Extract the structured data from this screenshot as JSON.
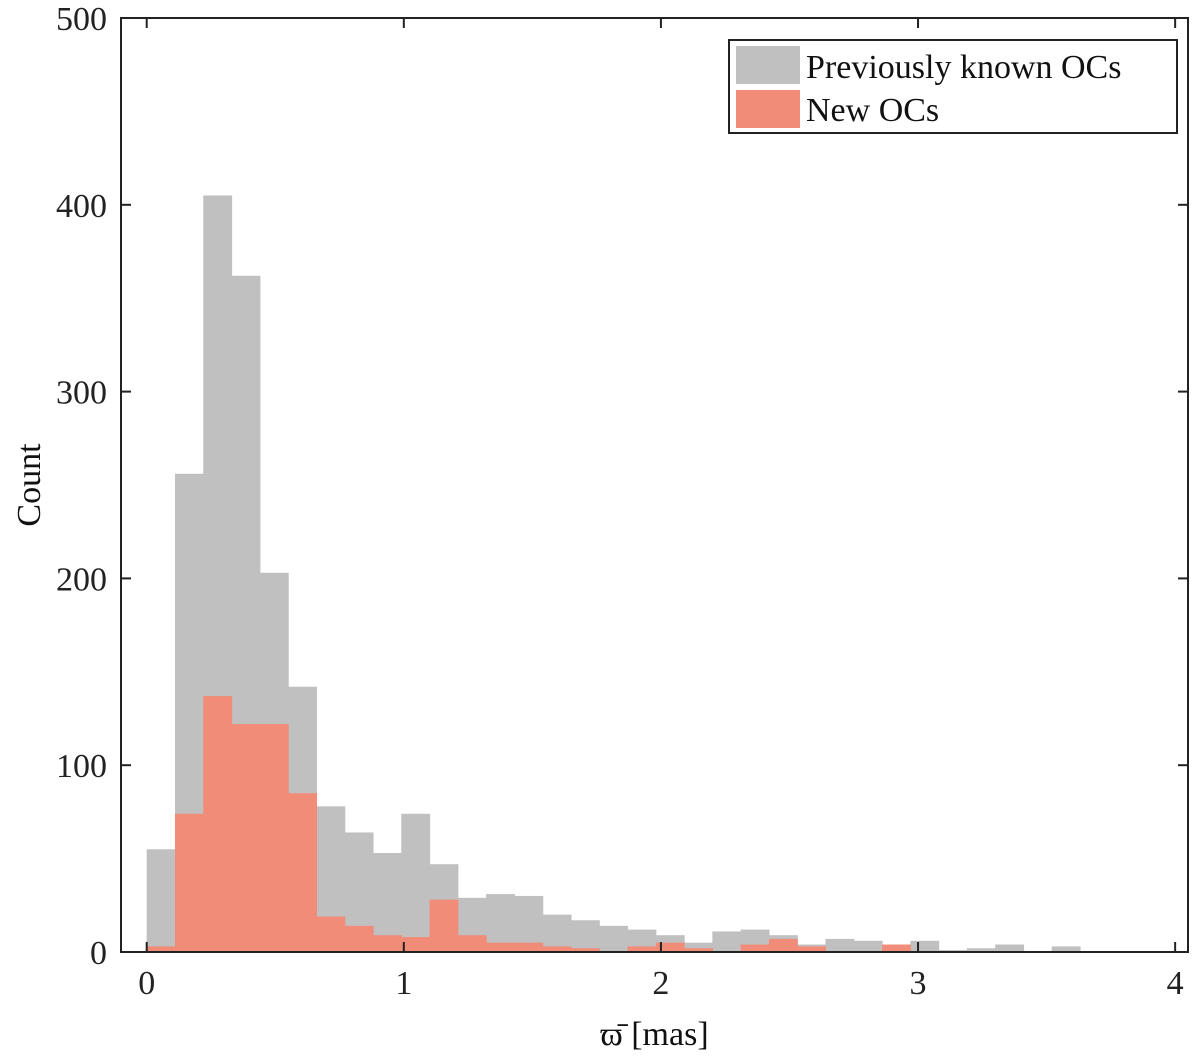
{
  "chart_data": {
    "type": "bar",
    "title": "",
    "xlabel": "ϖ̄ [mas]",
    "ylabel": "Count",
    "xlim": [
      -0.1,
      4.05
    ],
    "ylim": [
      0,
      500
    ],
    "xticks": [
      0,
      1,
      2,
      3,
      4
    ],
    "yticks": [
      0,
      100,
      200,
      300,
      400,
      500
    ],
    "xtick_labels": [
      "0",
      "1",
      "2",
      "3",
      "4"
    ],
    "ytick_labels": [
      "0",
      "100",
      "200",
      "300",
      "400",
      "500"
    ],
    "bin_width": 0.11,
    "grid": false,
    "legend_position": "top-right",
    "series": [
      {
        "name": "Previously known OCs",
        "color": "#c0c0c0",
        "bin_starts": [
          0.0,
          0.11,
          0.22,
          0.33,
          0.44,
          0.55,
          0.66,
          0.77,
          0.88,
          0.99,
          1.1,
          1.21,
          1.32,
          1.43,
          1.54,
          1.65,
          1.76,
          1.87,
          1.98,
          2.09,
          2.2,
          2.31,
          2.42,
          2.53,
          2.64,
          2.75,
          2.86,
          2.97,
          3.08,
          3.19,
          3.3,
          3.41,
          3.52,
          3.63
        ],
        "values": [
          55,
          256,
          405,
          362,
          203,
          142,
          78,
          64,
          53,
          74,
          47,
          29,
          31,
          30,
          20,
          17,
          14,
          12,
          9,
          5,
          11,
          12,
          9,
          4,
          7,
          6,
          3,
          6,
          1,
          2,
          4,
          0,
          3,
          0
        ]
      },
      {
        "name": "New OCs",
        "color": "#f08c78",
        "bin_starts": [
          0.0,
          0.11,
          0.22,
          0.33,
          0.44,
          0.55,
          0.66,
          0.77,
          0.88,
          0.99,
          1.1,
          1.21,
          1.32,
          1.43,
          1.54,
          1.65,
          1.76,
          1.87,
          1.98,
          2.09,
          2.2,
          2.31,
          2.42,
          2.53,
          2.64,
          2.75,
          2.86,
          2.97,
          3.08,
          3.19,
          3.3,
          3.41,
          3.52,
          3.63
        ],
        "values": [
          3,
          74,
          137,
          122,
          122,
          85,
          19,
          14,
          9,
          8,
          28,
          9,
          5,
          5,
          3,
          2,
          0,
          3,
          5,
          2,
          0,
          4,
          7,
          3,
          0,
          0,
          4,
          0,
          0,
          0,
          0,
          0,
          0,
          0
        ]
      }
    ]
  }
}
